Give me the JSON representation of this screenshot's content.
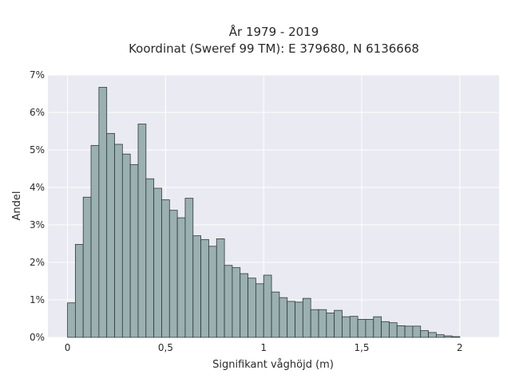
{
  "chart_data": {
    "type": "bar",
    "title_line1": "År 1979 - 2019",
    "title_line2": "Koordinat (Sweref 99 TM): E 379680, N 6136668",
    "xlabel": "Signifikant våghöjd (m)",
    "ylabel": "Andel",
    "xlim": [
      -0.1,
      2.2
    ],
    "ylim": [
      0,
      7
    ],
    "grid": true,
    "x_ticks": [
      {
        "value": 0,
        "label": "0"
      },
      {
        "value": 0.5,
        "label": "0,5"
      },
      {
        "value": 1,
        "label": "1"
      },
      {
        "value": 1.5,
        "label": "1,5"
      },
      {
        "value": 2,
        "label": "2"
      }
    ],
    "y_ticks": [
      {
        "value": 0,
        "label": "0%"
      },
      {
        "value": 1,
        "label": "1%"
      },
      {
        "value": 2,
        "label": "2%"
      },
      {
        "value": 3,
        "label": "3%"
      },
      {
        "value": 4,
        "label": "4%"
      },
      {
        "value": 5,
        "label": "5%"
      },
      {
        "value": 6,
        "label": "6%"
      },
      {
        "value": 7,
        "label": "7%"
      }
    ],
    "bin_width": 0.04,
    "bin_start": 0,
    "values": [
      0.92,
      2.48,
      3.74,
      5.12,
      6.67,
      5.44,
      5.15,
      4.89,
      4.61,
      5.69,
      4.23,
      3.98,
      3.67,
      3.39,
      3.19,
      3.71,
      2.71,
      2.61,
      2.43,
      2.63,
      1.92,
      1.86,
      1.7,
      1.58,
      1.43,
      1.66,
      1.21,
      1.06,
      0.96,
      0.94,
      1.04,
      0.74,
      0.74,
      0.65,
      0.72,
      0.55,
      0.56,
      0.48,
      0.48,
      0.55,
      0.42,
      0.39,
      0.31,
      0.3,
      0.3,
      0.18,
      0.13,
      0.07,
      0.04,
      0.02
    ],
    "colors": {
      "bar_fill": "#9bb0b0",
      "bar_stroke": "#2f3a3a",
      "plot_bg": "#eaeaf2",
      "grid": "#ffffff"
    }
  }
}
